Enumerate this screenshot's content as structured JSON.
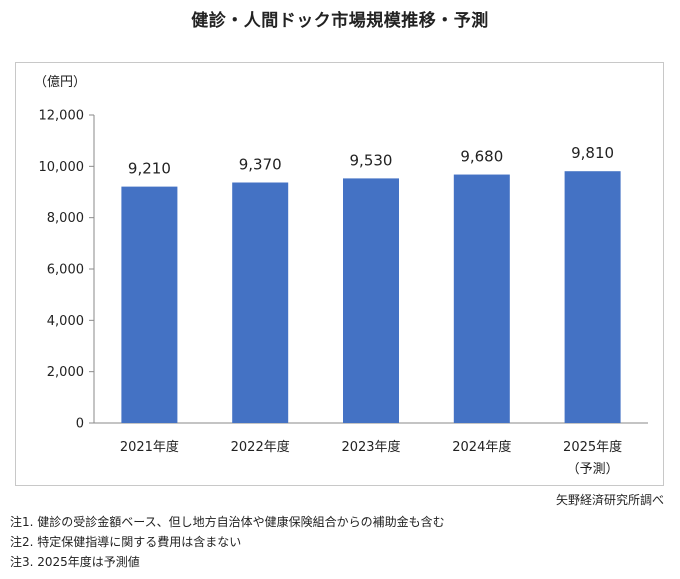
{
  "title": "健診・人間ドック市場規模推移・予測",
  "source": "矢野経済研究所調べ",
  "notes": [
    "注1.  健診の受診金額ベース、但し地方自治体や健康保険組合からの補助金も含む",
    "注2.  特定保健指導に関する費用は含まない",
    "注3.  2025年度は予測値"
  ],
  "chart_data": {
    "type": "bar",
    "title": "健診・人間ドック市場規模推移・予測",
    "ylabel": "（億円）",
    "categories": [
      "2021年度",
      "2022年度",
      "2023年度",
      "2024年度",
      "2025年度"
    ],
    "category_sublabels": [
      "",
      "",
      "",
      "",
      "（予測）"
    ],
    "values": [
      9210,
      9370,
      9530,
      9680,
      9810
    ],
    "value_labels": [
      "9,210",
      "9,370",
      "9,530",
      "9,680",
      "9,810"
    ],
    "ylim": [
      0,
      12000
    ],
    "yticks": [
      0,
      2000,
      4000,
      6000,
      8000,
      10000,
      12000
    ],
    "ytick_labels": [
      "0",
      "2,000",
      "4,000",
      "6,000",
      "8,000",
      "10,000",
      "12,000"
    ],
    "grid": false,
    "legend": "none",
    "bar_color": "#4472c4"
  }
}
